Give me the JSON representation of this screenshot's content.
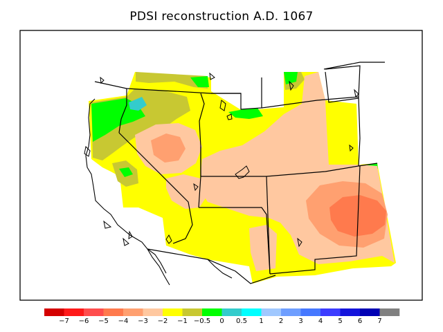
{
  "title": "PDSI reconstruction A.D. 1067",
  "legend": {
    "colors": [
      "#d40000",
      "#ff1a1a",
      "#ff4d4d",
      "#ff7a4d",
      "#ffa070",
      "#ffc8a0",
      "#ffff00",
      "#c8c832",
      "#00ff00",
      "#33cccc",
      "#00ffff",
      "#a0c8ff",
      "#6e9eff",
      "#4678ff",
      "#3c3cff",
      "#1414dc",
      "#0000b4",
      "#808080"
    ],
    "labels": [
      "−7",
      "−6",
      "−5",
      "−4",
      "−3",
      "−2",
      "−1",
      "−0.5",
      "0",
      "0.5",
      "1",
      "2",
      "3",
      "4",
      "5",
      "6",
      "7"
    ]
  }
}
